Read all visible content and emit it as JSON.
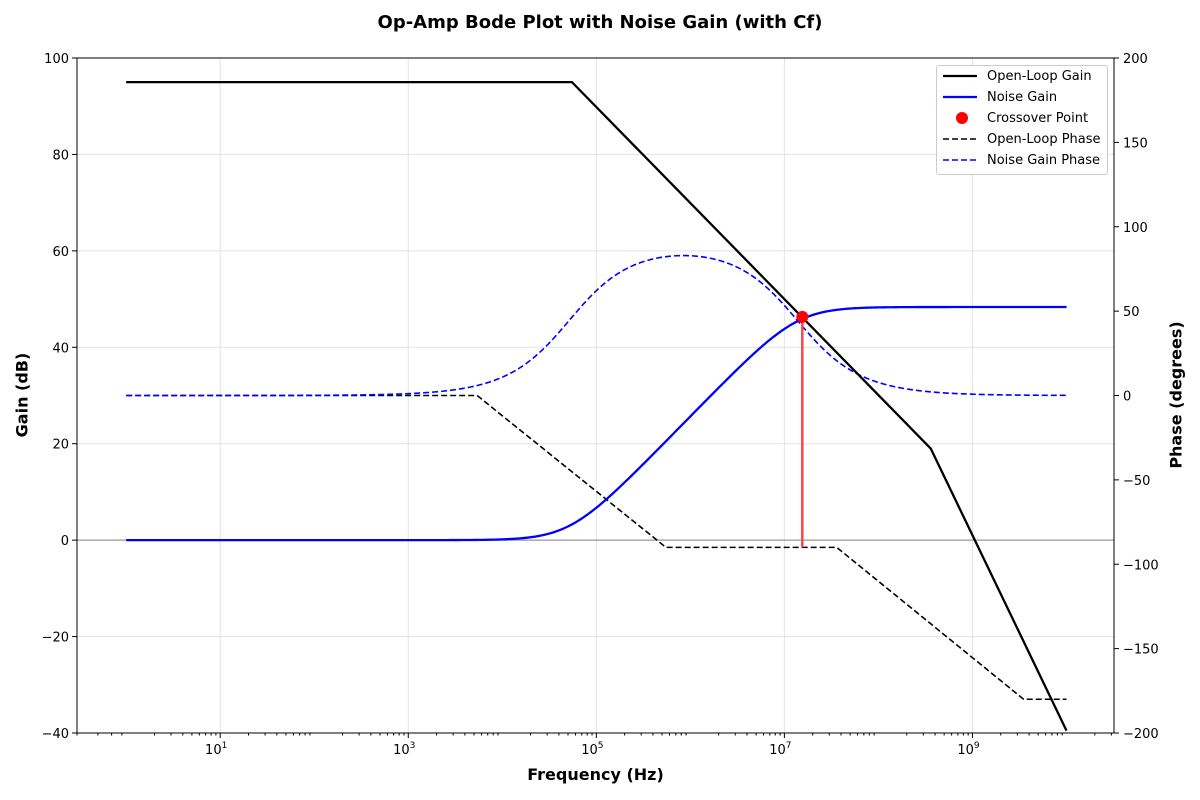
{
  "chart_data": {
    "type": "line",
    "title": "Op-Amp Bode Plot with Noise Gain (with Cf)",
    "xlabel": "Frequency (Hz)",
    "ylabel": "Gain (dB)",
    "y2label": "Phase (degrees)",
    "xscale": "log",
    "xlim": [
      0.3,
      32000000000.0
    ],
    "ylim": [
      -40,
      100
    ],
    "y2lim": [
      -200,
      200
    ],
    "grid": true,
    "legend_position": "top-right",
    "x_ticks": [
      {
        "v": 10,
        "exp": "1"
      },
      {
        "v": 1000,
        "exp": "3"
      },
      {
        "v": 100000,
        "exp": "5"
      },
      {
        "v": 10000000,
        "exp": "7"
      },
      {
        "v": 1000000000,
        "exp": "9"
      }
    ],
    "y_ticks": [
      -40,
      -20,
      0,
      20,
      40,
      60,
      80,
      100
    ],
    "y2_ticks": [
      -200,
      -150,
      -100,
      -50,
      0,
      50,
      100,
      150,
      200
    ],
    "series": [
      {
        "name": "Open-Loop Gain",
        "axis": "left",
        "color": "#000000",
        "style": "solid",
        "points": [
          [
            1,
            95
          ],
          [
            55000,
            95
          ],
          [
            360000000,
            19
          ],
          [
            10000000000,
            -39.5
          ]
        ]
      },
      {
        "name": "Noise Gain",
        "axis": "left",
        "color": "#0000ff",
        "style": "solid",
        "model": {
          "type": "zero-pole",
          "zero_hz": 52000,
          "pole_hz": 13600000,
          "range": [
            1,
            10000000000
          ]
        }
      },
      {
        "name": "Crossover Point",
        "axis": "left",
        "color": "#ff0000",
        "style": "marker",
        "points": [
          [
            15500000,
            46.3
          ]
        ]
      },
      {
        "name": "Open-Loop Phase",
        "axis": "right",
        "color": "#000000",
        "style": "dashed",
        "points": [
          [
            1,
            0
          ],
          [
            5400,
            0
          ],
          [
            550000,
            -90
          ],
          [
            36000000,
            -90
          ],
          [
            3500000000,
            -180
          ],
          [
            10000000000,
            -180
          ]
        ]
      },
      {
        "name": "Noise Gain Phase",
        "axis": "right",
        "color": "#0000ff",
        "style": "dashed",
        "model": {
          "type": "zero-pole-phase",
          "zero_hz": 52000,
          "pole_hz": 13600000,
          "range": [
            1,
            10000000000
          ]
        }
      }
    ],
    "phase_margin_line": {
      "x": 15500000,
      "from_gain_db": 46.3,
      "to_phase_deg": -90,
      "color": "#ff4444"
    },
    "zero_line": 0
  }
}
